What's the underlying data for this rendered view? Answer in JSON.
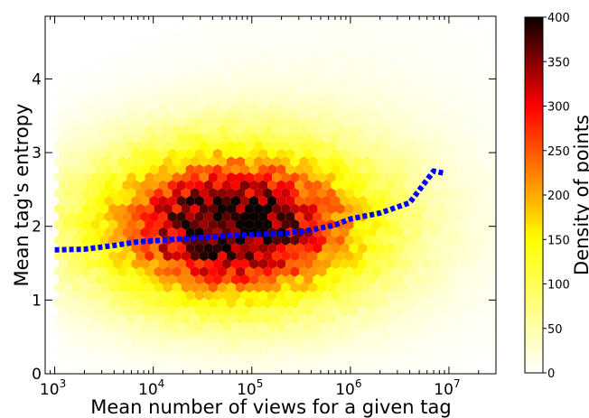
{
  "chart_data": {
    "type": "heatmap",
    "subtype": "hexbin-with-trend-line",
    "xlabel": "Mean number of views for a given tag",
    "ylabel": "Mean tag's entropy",
    "x_scale": "log",
    "xlim": [
      800,
      30000000
    ],
    "ylim": [
      0,
      4.85
    ],
    "x_ticks": [
      {
        "value": 1000,
        "base": "10",
        "exp": "3"
      },
      {
        "value": 10000,
        "base": "10",
        "exp": "4"
      },
      {
        "value": 100000,
        "base": "10",
        "exp": "5"
      },
      {
        "value": 1000000,
        "base": "10",
        "exp": "6"
      },
      {
        "value": 10000000,
        "base": "10",
        "exp": "7"
      }
    ],
    "y_ticks": [
      "0",
      "1",
      "2",
      "3",
      "4"
    ],
    "grid": false,
    "colormap": "hot_r",
    "colorbar": {
      "label": "Density of points",
      "min": 0,
      "max": 400,
      "ticks": [
        "0",
        "50",
        "100",
        "150",
        "200",
        "250",
        "300",
        "350",
        "400"
      ]
    },
    "density_model": {
      "peak_density": 400,
      "peak_x": 60000,
      "peak_y": 2.0,
      "spread_log10_x": 0.95,
      "spread_y": 0.72
    },
    "trend_line": {
      "color": "#0000ff",
      "style": "dotted",
      "points": [
        {
          "x": 1000,
          "y": 1.68
        },
        {
          "x": 2000,
          "y": 1.69
        },
        {
          "x": 4000,
          "y": 1.74
        },
        {
          "x": 7000,
          "y": 1.79
        },
        {
          "x": 15000,
          "y": 1.82
        },
        {
          "x": 40000,
          "y": 1.86
        },
        {
          "x": 100000,
          "y": 1.89
        },
        {
          "x": 200000,
          "y": 1.9
        },
        {
          "x": 400000,
          "y": 1.95
        },
        {
          "x": 700000,
          "y": 2.02
        },
        {
          "x": 1000000,
          "y": 2.1
        },
        {
          "x": 2000000,
          "y": 2.18
        },
        {
          "x": 4000000,
          "y": 2.32
        },
        {
          "x": 7000000,
          "y": 2.75
        },
        {
          "x": 9000000,
          "y": 2.72
        }
      ]
    }
  }
}
